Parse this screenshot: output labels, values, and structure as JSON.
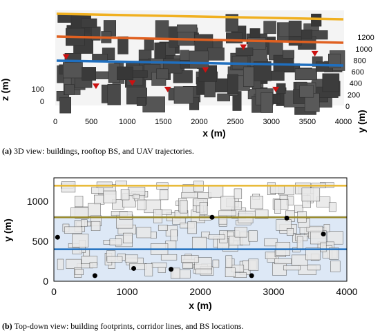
{
  "captions": {
    "a_label": "(a)",
    "a_text": "3D view: buildings, rooftop BS, and UAV trajectories.",
    "b_label": "(b)",
    "b_text": "Top-down view: building footprints, corridor lines, and BS locations."
  },
  "colors": {
    "building_3d": "#4a4a4a",
    "footprint_fill": "#e8e8e8",
    "footprint_edge": "#555555",
    "bs_3d": "#cc1111",
    "bs_top": "#000000",
    "corridor_high": "#f0b020",
    "corridor_mid": "#e06020",
    "corridor_low": "#1f6fbf",
    "corridor_b_top": "#e8b830",
    "corridor_b_mid": "#9a8a2a",
    "corridor_b_low": "#1f6fbf",
    "shade_band": "#dde8f6"
  },
  "chart_data": [
    {
      "type": "scatter",
      "panel": "3d",
      "xlabel": "x (m)",
      "ylabel": "y (m)",
      "zlabel": "z (m)",
      "xlim": [
        0,
        4000
      ],
      "x_ticks": [
        0,
        500,
        1000,
        1500,
        2000,
        2500,
        3000,
        3500,
        4000
      ],
      "y_ticks": [
        0,
        200,
        400,
        600,
        800,
        1000,
        1200
      ],
      "z_ticks": [
        0,
        100
      ],
      "series": [
        {
          "kind": "uav_trajectory",
          "color": "#f0b020",
          "x": [
            0,
            4000
          ],
          "y": [
            1250,
            1250
          ]
        },
        {
          "kind": "uav_trajectory",
          "color": "#e06020",
          "x": [
            0,
            4000
          ],
          "y": [
            800,
            800
          ]
        },
        {
          "kind": "uav_trajectory",
          "color": "#1f6fbf",
          "x": [
            0,
            4000
          ],
          "y": [
            400,
            400
          ]
        },
        {
          "kind": "rooftop_bs",
          "x": [
            100,
            550,
            1050,
            1550,
            2050,
            2550,
            3050,
            3550
          ],
          "y": [
            650,
            200,
            250,
            150,
            450,
            800,
            150,
            700
          ]
        }
      ]
    },
    {
      "type": "scatter",
      "panel": "top",
      "xlabel": "x (m)",
      "ylabel": "y (m)",
      "xlim": [
        0,
        4000
      ],
      "ylim": [
        0,
        1250
      ],
      "x_ticks": [
        0,
        1000,
        2000,
        3000,
        4000
      ],
      "y_ticks": [
        0,
        500,
        1000
      ],
      "series": [
        {
          "kind": "corridor",
          "color": "#e8b830",
          "x": [
            0,
            4000
          ],
          "y": [
            1195,
            1195
          ]
        },
        {
          "kind": "corridor",
          "color": "#9a8a2a",
          "x": [
            0,
            4000
          ],
          "y": [
            800,
            800
          ]
        },
        {
          "kind": "corridor",
          "color": "#1f6fbf",
          "x": [
            0,
            4000
          ],
          "y": [
            400,
            400
          ]
        },
        {
          "kind": "bs",
          "x": [
            50,
            560,
            1090,
            1600,
            2160,
            3180,
            3680,
            2700
          ],
          "y": [
            550,
            70,
            160,
            150,
            800,
            790,
            590,
            70
          ]
        }
      ]
    }
  ]
}
